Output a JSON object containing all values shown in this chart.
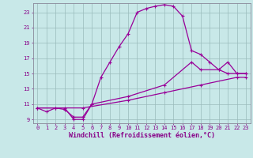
{
  "xlabel": "Windchill (Refroidissement éolien,°C)",
  "bg_color": "#c8e8e8",
  "line_color": "#990099",
  "grid_color": "#99bbbb",
  "xlim": [
    -0.5,
    23.5
  ],
  "ylim": [
    8.5,
    24.2
  ],
  "xticks": [
    0,
    1,
    2,
    3,
    4,
    5,
    6,
    7,
    8,
    9,
    10,
    11,
    12,
    13,
    14,
    15,
    16,
    17,
    18,
    19,
    20,
    21,
    22,
    23
  ],
  "yticks": [
    9,
    11,
    13,
    15,
    17,
    19,
    21,
    23
  ],
  "line1_x": [
    0,
    1,
    2,
    3,
    4,
    5,
    6,
    7,
    8,
    9,
    10,
    11,
    12,
    13,
    14,
    15,
    16,
    17,
    18,
    19,
    20,
    21,
    22,
    23
  ],
  "line1_y": [
    10.5,
    10.0,
    10.5,
    10.5,
    9.0,
    9.0,
    11.0,
    14.5,
    16.5,
    18.5,
    20.2,
    23.0,
    23.5,
    23.8,
    24.0,
    23.8,
    22.5,
    18.0,
    17.5,
    16.5,
    15.5,
    15.0,
    15.0,
    15.0
  ],
  "line2_x": [
    0,
    2,
    3,
    4,
    5,
    6,
    10,
    14,
    17,
    18,
    20,
    21,
    22,
    23
  ],
  "line2_y": [
    10.5,
    10.5,
    10.3,
    9.3,
    9.3,
    11.0,
    12.0,
    13.5,
    16.5,
    15.5,
    15.5,
    16.5,
    15.0,
    15.0
  ],
  "line3_x": [
    0,
    5,
    10,
    14,
    18,
    22,
    23
  ],
  "line3_y": [
    10.5,
    10.5,
    11.5,
    12.5,
    13.5,
    14.5,
    14.5
  ],
  "tick_label_color": "#880088",
  "xlabel_color": "#880088",
  "tick_fontsize": 5.0,
  "xlabel_fontsize": 6.0,
  "spine_color": "#888899",
  "marker_size": 3.5,
  "linewidth": 0.9
}
